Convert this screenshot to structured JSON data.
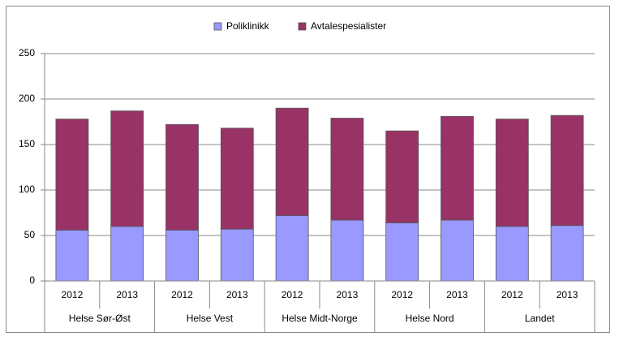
{
  "chart_data": {
    "type": "stacked-bar",
    "groups": [
      {
        "name": "Helse Sør-Øst",
        "categories": [
          "2012",
          "2013"
        ]
      },
      {
        "name": "Helse Vest",
        "categories": [
          "2012",
          "2013"
        ]
      },
      {
        "name": "Helse Midt-Norge",
        "categories": [
          "2012",
          "2013"
        ]
      },
      {
        "name": "Helse Nord",
        "categories": [
          "2012",
          "2013"
        ]
      },
      {
        "name": "Landet",
        "categories": [
          "2012",
          "2013"
        ]
      }
    ],
    "series": [
      {
        "name": "Poliklinikk",
        "color": "#9999ff",
        "values": [
          56,
          60,
          56,
          57,
          72,
          67,
          64,
          67,
          60,
          61
        ]
      },
      {
        "name": "Avtalespesialister",
        "color": "#993366",
        "values": [
          122,
          127,
          116,
          111,
          118,
          112,
          101,
          114,
          118,
          121
        ]
      }
    ],
    "ylim": [
      0,
      250
    ],
    "yticks": [
      0,
      50,
      100,
      150,
      200,
      250
    ],
    "grid": true,
    "legend": "top"
  }
}
